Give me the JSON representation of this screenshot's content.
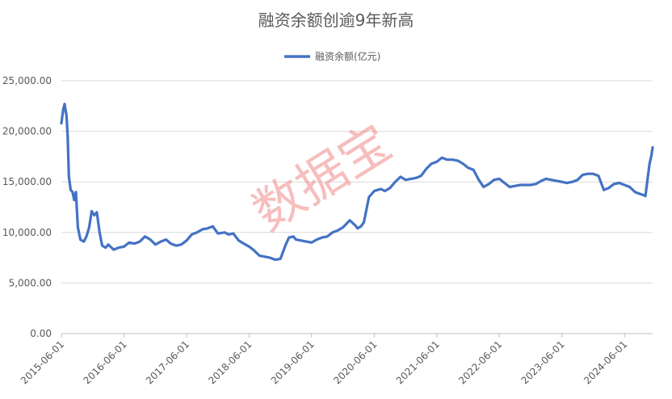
{
  "chart_data": {
    "type": "line",
    "title": "融资余额创逾9年新高",
    "xlabel": "",
    "ylabel": "",
    "ylim": [
      0,
      25000
    ],
    "y_ticks": [
      "0.00",
      "5,000.00",
      "10,000.00",
      "15,000.00",
      "20,000.00",
      "25,000.00"
    ],
    "x_ticks": [
      "2015-06-01",
      "2016-06-01",
      "2017-06-01",
      "2018-06-01",
      "2019-06-01",
      "2020-06-01",
      "2021-06-01",
      "2022-06-01",
      "2023-06-01",
      "2024-06-01"
    ],
    "grid": "horizontal",
    "legend_position": "top-center",
    "watermark": "数据宝",
    "colors": {
      "series": "#4472c4",
      "grid": "#d9d9d9",
      "watermark": "#f08a8a"
    },
    "series": [
      {
        "name": "融资余额(亿元)",
        "x": [
          "2015-06-01",
          "2015-06-12",
          "2015-06-20",
          "2015-07-01",
          "2015-07-08",
          "2015-07-15",
          "2015-07-25",
          "2015-08-05",
          "2015-08-15",
          "2015-08-25",
          "2015-09-05",
          "2015-09-20",
          "2015-10-10",
          "2015-10-25",
          "2015-11-10",
          "2015-11-25",
          "2015-12-10",
          "2015-12-25",
          "2016-01-10",
          "2016-01-25",
          "2016-02-15",
          "2016-03-01",
          "2016-04-01",
          "2016-05-01",
          "2016-06-01",
          "2016-07-01",
          "2016-08-01",
          "2016-09-01",
          "2016-10-01",
          "2016-11-01",
          "2016-12-01",
          "2017-01-01",
          "2017-02-01",
          "2017-03-01",
          "2017-04-01",
          "2017-05-01",
          "2017-06-01",
          "2017-07-01",
          "2017-08-01",
          "2017-09-01",
          "2017-10-01",
          "2017-11-01",
          "2017-12-01",
          "2018-01-10",
          "2018-02-01",
          "2018-03-01",
          "2018-04-01",
          "2018-05-01",
          "2018-06-01",
          "2018-07-01",
          "2018-08-01",
          "2018-09-01",
          "2018-10-01",
          "2018-11-01",
          "2018-12-01",
          "2019-01-01",
          "2019-01-20",
          "2019-02-15",
          "2019-03-01",
          "2019-04-01",
          "2019-05-01",
          "2019-06-01",
          "2019-07-01",
          "2019-08-01",
          "2019-09-01",
          "2019-10-01",
          "2019-11-01",
          "2019-12-01",
          "2020-01-10",
          "2020-02-10",
          "2020-02-25",
          "2020-03-15",
          "2020-04-01",
          "2020-05-01",
          "2020-06-01",
          "2020-06-20",
          "2020-07-10",
          "2020-08-01",
          "2020-09-01",
          "2020-10-01",
          "2020-11-01",
          "2020-12-01",
          "2021-01-01",
          "2021-02-01",
          "2021-03-01",
          "2021-04-01",
          "2021-05-01",
          "2021-06-01",
          "2021-07-01",
          "2021-08-01",
          "2021-09-01",
          "2021-10-01",
          "2021-11-01",
          "2021-12-01",
          "2022-01-01",
          "2022-02-01",
          "2022-03-01",
          "2022-04-01",
          "2022-05-01",
          "2022-06-01",
          "2022-07-01",
          "2022-08-01",
          "2022-09-01",
          "2022-10-01",
          "2022-11-01",
          "2022-12-01",
          "2023-01-01",
          "2023-02-01",
          "2023-03-01",
          "2023-04-01",
          "2023-05-01",
          "2023-06-01",
          "2023-07-01",
          "2023-08-01",
          "2023-09-01",
          "2023-10-01",
          "2023-11-01",
          "2023-12-01",
          "2024-01-01",
          "2024-02-01",
          "2024-03-01",
          "2024-04-01",
          "2024-05-01",
          "2024-06-01",
          "2024-07-01",
          "2024-08-01",
          "2024-09-01",
          "2024-09-20",
          "2024-10-01",
          "2024-10-15",
          "2024-10-25",
          "2024-11-05",
          "2024-11-12"
        ],
        "values": [
          20800,
          22200,
          22700,
          21500,
          19500,
          15500,
          14200,
          14000,
          13200,
          14000,
          10500,
          9300,
          9100,
          9600,
          10500,
          12100,
          11700,
          12000,
          10000,
          8700,
          8500,
          8800,
          8300,
          8500,
          8600,
          9000,
          8900,
          9100,
          9600,
          9300,
          8800,
          9100,
          9300,
          8900,
          8700,
          8800,
          9200,
          9800,
          10000,
          10300,
          10400,
          10600,
          9900,
          10000,
          9800,
          9900,
          9200,
          8900,
          8600,
          8200,
          7700,
          7600,
          7500,
          7300,
          7400,
          8800,
          9500,
          9600,
          9300,
          9200,
          9100,
          9000,
          9300,
          9500,
          9600,
          10000,
          10200,
          10500,
          11200,
          10700,
          10400,
          10600,
          11000,
          13500,
          14100,
          14200,
          14300,
          14100,
          14400,
          15000,
          15500,
          15200,
          15300,
          15400,
          15600,
          16300,
          16800,
          17000,
          17400,
          17200,
          17200,
          17100,
          16800,
          16400,
          16200,
          15200,
          14500,
          14800,
          15200,
          15300,
          14900,
          14500,
          14600,
          14700,
          14700,
          14700,
          14800,
          15100,
          15300,
          15200,
          15100,
          15000,
          14900,
          15000,
          15200,
          15700,
          15800,
          15800,
          15600,
          14200,
          14400,
          14800,
          14900,
          14700,
          14500,
          14000,
          13800,
          13700,
          13600,
          15500,
          16800,
          17600,
          18400
        ]
      }
    ]
  }
}
